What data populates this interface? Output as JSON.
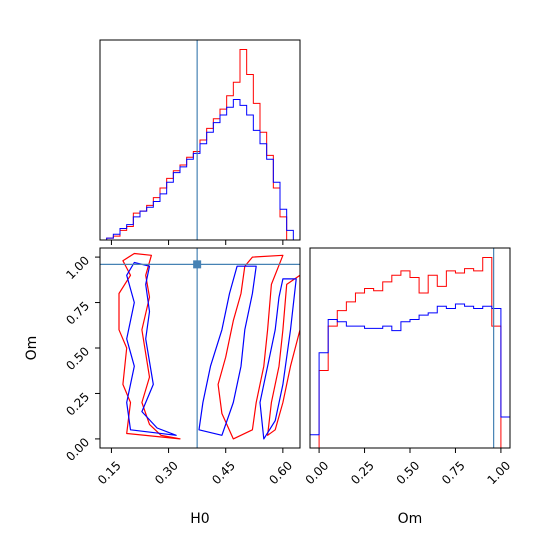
{
  "chart_data": {
    "type": "corner",
    "colors": {
      "run_a": "#ff0000",
      "run_b": "#0000ff",
      "truth": "#4682b4"
    },
    "parameters": [
      {
        "name": "H0",
        "range": [
          0.12,
          0.645
        ]
      },
      {
        "name": "Om",
        "range": [
          -0.05,
          1.05
        ]
      }
    ],
    "truth": {
      "H0": 0.375,
      "Om": 0.96
    },
    "panels": [
      {
        "id": "hist-h0",
        "type": "step-histogram",
        "xlim": [
          0.12,
          0.645
        ],
        "xticks": [
          0.15,
          0.3,
          0.45,
          0.6
        ],
        "tick_labels_shown": false,
        "bin_edges": [
          0.12,
          0.1375,
          0.155,
          0.1725,
          0.19,
          0.2075,
          0.225,
          0.2425,
          0.26,
          0.2775,
          0.295,
          0.3125,
          0.33,
          0.3475,
          0.365,
          0.3825,
          0.4,
          0.4175,
          0.435,
          0.4525,
          0.47,
          0.4875,
          0.505,
          0.5225,
          0.54,
          0.5575,
          0.575,
          0.5925,
          0.61,
          0.6275,
          0.645
        ],
        "series": [
          {
            "run": "run_a",
            "values": [
              0.0,
              0.01,
              0.02,
              0.05,
              0.07,
              0.14,
              0.15,
              0.18,
              0.22,
              0.27,
              0.32,
              0.36,
              0.39,
              0.43,
              0.46,
              0.52,
              0.58,
              0.63,
              0.68,
              0.75,
              0.82,
              0.99,
              0.86,
              0.71,
              0.56,
              0.44,
              0.27,
              0.12,
              0.0,
              0.0
            ]
          },
          {
            "run": "run_b",
            "values": [
              0.0,
              0.01,
              0.03,
              0.06,
              0.08,
              0.12,
              0.15,
              0.17,
              0.2,
              0.24,
              0.3,
              0.35,
              0.38,
              0.42,
              0.45,
              0.5,
              0.56,
              0.61,
              0.65,
              0.69,
              0.73,
              0.7,
              0.65,
              0.57,
              0.5,
              0.42,
              0.3,
              0.16,
              0.05,
              0.0
            ]
          }
        ]
      },
      {
        "id": "hist-om",
        "type": "step-histogram",
        "xlim": [
          -0.05,
          1.05
        ],
        "xticks": [
          0.0,
          0.25,
          0.5,
          0.75,
          1.0
        ],
        "xtick_labels": [
          "0.00",
          "0.25",
          "0.50",
          "0.75",
          "1.00"
        ],
        "xlabel": "Om",
        "bin_edges": [
          -0.05,
          0.0,
          0.05,
          0.1,
          0.15,
          0.2,
          0.25,
          0.3,
          0.35,
          0.4,
          0.45,
          0.5,
          0.55,
          0.6,
          0.65,
          0.7,
          0.75,
          0.8,
          0.85,
          0.9,
          0.95,
          1.0,
          1.05
        ],
        "series": [
          {
            "run": "run_a",
            "values": [
              0.0,
              0.35,
              0.55,
              0.62,
              0.66,
              0.7,
              0.72,
              0.71,
              0.75,
              0.78,
              0.8,
              0.77,
              0.7,
              0.78,
              0.73,
              0.8,
              0.79,
              0.81,
              0.8,
              0.86,
              0.55,
              0.0
            ]
          },
          {
            "run": "run_b",
            "values": [
              0.06,
              0.43,
              0.58,
              0.57,
              0.55,
              0.55,
              0.54,
              0.54,
              0.55,
              0.53,
              0.57,
              0.58,
              0.6,
              0.61,
              0.64,
              0.63,
              0.65,
              0.64,
              0.63,
              0.64,
              0.63,
              0.14
            ]
          }
        ]
      },
      {
        "id": "contour-h0-om",
        "type": "contour",
        "x": "H0",
        "y": "Om",
        "xlim": [
          0.12,
          0.645
        ],
        "ylim": [
          -0.05,
          1.05
        ],
        "xticks": [
          0.15,
          0.3,
          0.45,
          0.6
        ],
        "xtick_labels": [
          "0.15",
          "0.30",
          "0.45",
          "0.60"
        ],
        "yticks": [
          0.0,
          0.25,
          0.5,
          0.75,
          1.0
        ],
        "ytick_labels": [
          "0.00",
          "0.25",
          "0.50",
          "0.75",
          "1.00"
        ],
        "xlabel": "H0",
        "ylabel": "Om",
        "contours": [
          {
            "run": "run_a",
            "points": [
              [
                0.21,
                1.02
              ],
              [
                0.255,
                1.01
              ],
              [
                0.24,
                0.9
              ],
              [
                0.25,
                0.78
              ],
              [
                0.23,
                0.6
              ],
              [
                0.25,
                0.34
              ],
              [
                0.23,
                0.2
              ],
              [
                0.25,
                0.08
              ],
              [
                0.28,
                0.02
              ],
              [
                0.33,
                0.0
              ],
              [
                0.19,
                0.03
              ],
              [
                0.2,
                0.2
              ],
              [
                0.18,
                0.3
              ],
              [
                0.19,
                0.5
              ],
              [
                0.17,
                0.6
              ],
              [
                0.17,
                0.8
              ],
              [
                0.2,
                0.9
              ],
              [
                0.18,
                0.98
              ]
            ]
          },
          {
            "run": "run_b",
            "points": [
              [
                0.21,
                0.97
              ],
              [
                0.25,
                0.95
              ],
              [
                0.24,
                0.85
              ],
              [
                0.25,
                0.7
              ],
              [
                0.24,
                0.55
              ],
              [
                0.26,
                0.3
              ],
              [
                0.23,
                0.15
              ],
              [
                0.27,
                0.06
              ],
              [
                0.32,
                0.02
              ],
              [
                0.2,
                0.05
              ],
              [
                0.19,
                0.2
              ],
              [
                0.21,
                0.4
              ],
              [
                0.19,
                0.55
              ],
              [
                0.21,
                0.75
              ],
              [
                0.19,
                0.9
              ]
            ]
          },
          {
            "run": "run_a",
            "points": [
              [
                0.52,
                1.0
              ],
              [
                0.6,
                1.01
              ],
              [
                0.57,
                0.85
              ],
              [
                0.56,
                0.6
              ],
              [
                0.55,
                0.4
              ],
              [
                0.53,
                0.2
              ],
              [
                0.52,
                0.05
              ],
              [
                0.47,
                0.0
              ],
              [
                0.44,
                0.14
              ],
              [
                0.43,
                0.3
              ],
              [
                0.45,
                0.45
              ],
              [
                0.47,
                0.65
              ],
              [
                0.49,
                0.8
              ],
              [
                0.5,
                0.95
              ]
            ]
          },
          {
            "run": "run_b",
            "points": [
              [
                0.48,
                0.95
              ],
              [
                0.53,
                0.95
              ],
              [
                0.52,
                0.8
              ],
              [
                0.5,
                0.6
              ],
              [
                0.49,
                0.4
              ],
              [
                0.47,
                0.2
              ],
              [
                0.44,
                0.02
              ],
              [
                0.38,
                0.05
              ],
              [
                0.39,
                0.2
              ],
              [
                0.41,
                0.4
              ],
              [
                0.44,
                0.6
              ],
              [
                0.46,
                0.8
              ]
            ]
          },
          {
            "run": "run_a",
            "points": [
              [
                0.61,
                0.85
              ],
              [
                0.645,
                0.9
              ],
              [
                0.645,
                0.6
              ],
              [
                0.62,
                0.4
              ],
              [
                0.6,
                0.2
              ],
              [
                0.58,
                0.05
              ],
              [
                0.56,
                0.02
              ],
              [
                0.57,
                0.2
              ],
              [
                0.59,
                0.4
              ],
              [
                0.6,
                0.6
              ]
            ]
          },
          {
            "run": "run_b",
            "points": [
              [
                0.6,
                0.88
              ],
              [
                0.635,
                0.88
              ],
              [
                0.62,
                0.6
              ],
              [
                0.6,
                0.3
              ],
              [
                0.58,
                0.1
              ],
              [
                0.55,
                0.0
              ],
              [
                0.54,
                0.2
              ],
              [
                0.56,
                0.4
              ],
              [
                0.58,
                0.6
              ],
              [
                0.59,
                0.78
              ]
            ]
          }
        ],
        "truth_marker": [
          0.375,
          0.96
        ]
      }
    ]
  }
}
